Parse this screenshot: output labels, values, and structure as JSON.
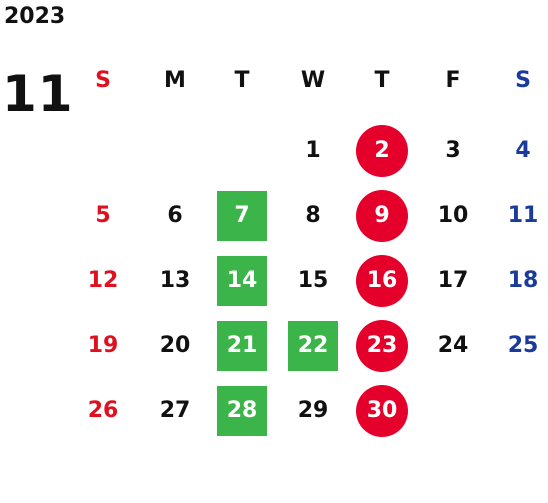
{
  "calendar": {
    "year": "2023",
    "month": "11",
    "weekdays": [
      "S",
      "M",
      "T",
      "W",
      "T",
      "F",
      "S"
    ],
    "start_weekday_index": 3,
    "days_in_month": 30,
    "colors": {
      "text": "#111111",
      "sunday": "#e0101e",
      "saturday": "#1a3a9c",
      "circle_fill": "#e5002b",
      "square_fill": "#3bb44a",
      "marked_text": "#ffffff"
    },
    "circled_days": [
      2,
      9,
      16,
      23,
      30
    ],
    "squared_days": [
      7,
      14,
      21,
      22,
      28
    ]
  }
}
